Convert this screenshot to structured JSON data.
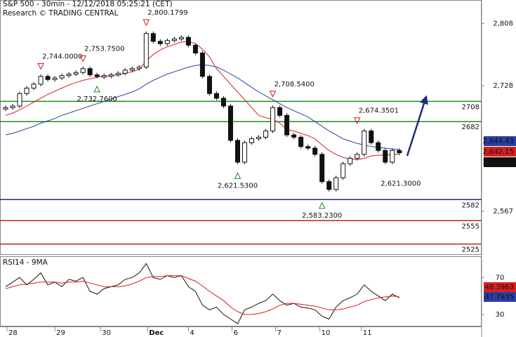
{
  "chart_data": [
    {
      "type": "candlestick",
      "title": "S&P 500 - 30min - 12/12/2018 05:25:21 (CET)",
      "subtitle": "Research © TRADING CENTRAL",
      "x": [
        0,
        1,
        2,
        3,
        4,
        5,
        6,
        7,
        8,
        9,
        10,
        11,
        12,
        13,
        14,
        15,
        16,
        17,
        18,
        19,
        20,
        21,
        22,
        23,
        24,
        25,
        26,
        27,
        28,
        29,
        30,
        31,
        32,
        33,
        34,
        35,
        36,
        37,
        38,
        39,
        40,
        41,
        42,
        43,
        44,
        45,
        46,
        47,
        48,
        49,
        50,
        51,
        52,
        53,
        54,
        55,
        56
      ],
      "values": [
        2700,
        2702,
        2718,
        2725,
        2730,
        2740,
        2736,
        2738,
        2741,
        2743,
        2745,
        2750,
        2742,
        2740,
        2741,
        2742,
        2744,
        2748,
        2750,
        2752,
        2795,
        2785,
        2782,
        2786,
        2788,
        2790,
        2780,
        2770,
        2740,
        2718,
        2712,
        2702,
        2658,
        2630,
        2655,
        2660,
        2662,
        2670,
        2700,
        2690,
        2665,
        2662,
        2650,
        2648,
        2640,
        2605,
        2595,
        2610,
        2628,
        2635,
        2640,
        2670,
        2655,
        2645,
        2630,
        2645,
        2642
      ],
      "series": [
        {
          "color": "#d62020",
          "values": [
            2690,
            2693,
            2697,
            2702,
            2707,
            2712,
            2717,
            2721,
            2725,
            2729,
            2732,
            2735,
            2737,
            2739,
            2740,
            2741,
            2742,
            2744,
            2746,
            2749,
            2760,
            2768,
            2774,
            2778,
            2781,
            2784,
            2785,
            2782,
            2775,
            2765,
            2750,
            2740,
            2730,
            2720,
            2710,
            2700,
            2690,
            2687,
            2685,
            2680,
            2672,
            2670,
            2667,
            2664,
            2660,
            2652,
            2645,
            2640,
            2636,
            2634,
            2633,
            2635,
            2638,
            2639,
            2639,
            2640,
            2640
          ]
        },
        {
          "color": "#2a3fa0",
          "values": [
            2665,
            2667,
            2670,
            2673,
            2676,
            2680,
            2683,
            2686,
            2690,
            2693,
            2696,
            2699,
            2702,
            2705,
            2708,
            2711,
            2714,
            2717,
            2720,
            2724,
            2730,
            2735,
            2739,
            2743,
            2746,
            2749,
            2752,
            2754,
            2755,
            2754,
            2752,
            2748,
            2743,
            2738,
            2732,
            2726,
            2720,
            2715,
            2710,
            2705,
            2700,
            2696,
            2692,
            2688,
            2682,
            2676,
            2670,
            2665,
            2660,
            2657,
            2654,
            2652,
            2650,
            2649,
            2648,
            2647,
            2646
          ]
        }
      ],
      "levels": [
        {
          "value": 2708,
          "color": "#1e8c1e"
        },
        {
          "value": 2682,
          "color": "#1e8c1e"
        },
        {
          "value": 2582,
          "color": "#1f2a80"
        },
        {
          "value": 2555,
          "color": "#c81e1e"
        },
        {
          "value": 2525,
          "color": "#c81e1e"
        }
      ],
      "annotations": [
        {
          "x": 5,
          "value": 2744,
          "label": "2,744.0000",
          "kind": "high"
        },
        {
          "x": 11,
          "value": 2753.75,
          "label": "2,753.7500",
          "kind": "high"
        },
        {
          "x": 20,
          "value": 2800.1799,
          "label": "2,800.1799",
          "kind": "high"
        },
        {
          "x": 38,
          "value": 2708.54,
          "label": "2,708.5400",
          "kind": "high"
        },
        {
          "x": 50,
          "value": 2674.3501,
          "label": "2,674.3501",
          "kind": "high"
        },
        {
          "x": 13,
          "value": 2732.76,
          "label": "2,732.7600",
          "kind": "low"
        },
        {
          "x": 33,
          "value": 2621.53,
          "label": "2,621.5300",
          "kind": "low"
        },
        {
          "x": 45,
          "value": 2583.23,
          "label": "2,583.2300",
          "kind": "low"
        },
        {
          "x": 56.2,
          "value": 2621.3,
          "label": "2,621.3000",
          "kind": "none"
        }
      ],
      "price_labels": [
        {
          "label": "2,644.43",
          "color": "#2a3fa0"
        },
        {
          "label": "2,642.15",
          "color": "#d62020"
        },
        {
          "label": "2,636.78",
          "color": "#111111"
        }
      ],
      "xlim": [
        -0.8,
        67.7
      ],
      "xticks": [
        {
          "value": 0.2,
          "label": "28"
        },
        {
          "value": 7,
          "label": "29"
        },
        {
          "value": 13.5,
          "label": "30"
        },
        {
          "value": 20.2,
          "label": "Dec"
        },
        {
          "value": 26,
          "label": "4"
        },
        {
          "value": 32.2,
          "label": "6"
        },
        {
          "value": 38.4,
          "label": "7"
        },
        {
          "value": 44.7,
          "label": "10"
        },
        {
          "value": 50.6,
          "label": "11"
        }
      ],
      "ylim": [
        2512,
        2838
      ],
      "yticks": [
        {
          "value": 2808,
          "label": "2,808"
        },
        {
          "value": 2728,
          "label": "2,728"
        },
        {
          "value": 2567,
          "label": "2,567"
        }
      ]
    },
    {
      "type": "line",
      "title": "RSI14 - 9MA",
      "series": [
        {
          "color": "#111111",
          "values": [
            60,
            65,
            70,
            62,
            68,
            75,
            62,
            65,
            60,
            68,
            66,
            70,
            55,
            52,
            58,
            60,
            62,
            68,
            70,
            75,
            85,
            70,
            68,
            72,
            70,
            72,
            60,
            55,
            40,
            35,
            38,
            30,
            25,
            20,
            35,
            38,
            42,
            45,
            52,
            45,
            40,
            42,
            38,
            37,
            35,
            28,
            25,
            38,
            45,
            48,
            52,
            62,
            55,
            50,
            45,
            52,
            48
          ]
        },
        {
          "color": "#d62020",
          "values": [
            58,
            60,
            62,
            63,
            64,
            65,
            65,
            65,
            64,
            65,
            65,
            66,
            64,
            62,
            60,
            60,
            60,
            61,
            63,
            66,
            70,
            71,
            71,
            72,
            72,
            72,
            69,
            66,
            61,
            55,
            50,
            45,
            38,
            33,
            30,
            30,
            31,
            33,
            36,
            40,
            42,
            42,
            41,
            40,
            39,
            37,
            35,
            35,
            36,
            38,
            40,
            44,
            46,
            48,
            49,
            50,
            49
          ]
        }
      ],
      "value_labels": [
        {
          "label": "48.3963",
          "color": "#d62020"
        },
        {
          "label": "47.7935",
          "color": "#2a3fa0"
        }
      ],
      "ylim": [
        17,
        93
      ],
      "yticks": [
        70,
        30
      ]
    }
  ]
}
